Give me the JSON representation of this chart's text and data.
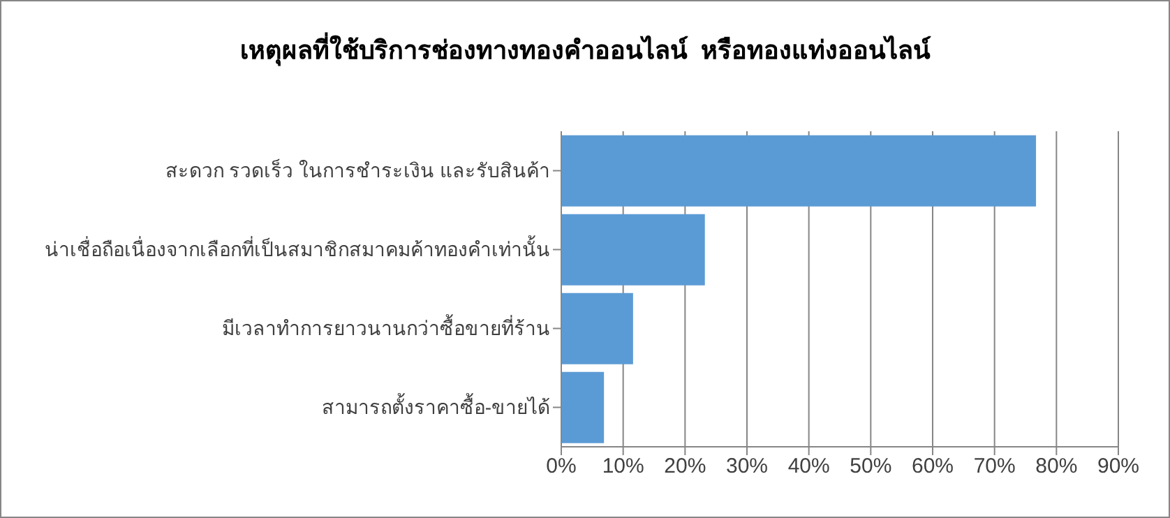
{
  "chart_data": {
    "type": "bar",
    "orientation": "horizontal",
    "title": "เหตุผลที่ใช้บริการช่องทางทองคำออนไลน์  หรือทองแท่งออนไลน์",
    "categories": [
      "สะดวก รวดเร็ว ในการชำระเงิน และรับสินค้า",
      "น่าเชื่อถือเนื่องจากเลือกที่เป็นสมาชิกสมาคมค้าทองคำเท่านั้น",
      "มีเวลาทำการยาวนานกว่าซื้อขายที่ร้าน",
      "สามารถตั้งราคาซื้อ-ขายได้"
    ],
    "values": [
      76.7,
      23.2,
      11.6,
      6.9
    ],
    "color": "#5b9bd5",
    "xlim": [
      0,
      90
    ],
    "xticks": [
      {
        "value": 0,
        "label": "0%"
      },
      {
        "value": 10,
        "label": "10%"
      },
      {
        "value": 20,
        "label": "20%"
      },
      {
        "value": 30,
        "label": "30%"
      },
      {
        "value": 40,
        "label": "40%"
      },
      {
        "value": 50,
        "label": "50%"
      },
      {
        "value": 60,
        "label": "60%"
      },
      {
        "value": 70,
        "label": "70%"
      },
      {
        "value": 80,
        "label": "80%"
      },
      {
        "value": 90,
        "label": "90%"
      }
    ],
    "grid": "x",
    "legend": false
  }
}
